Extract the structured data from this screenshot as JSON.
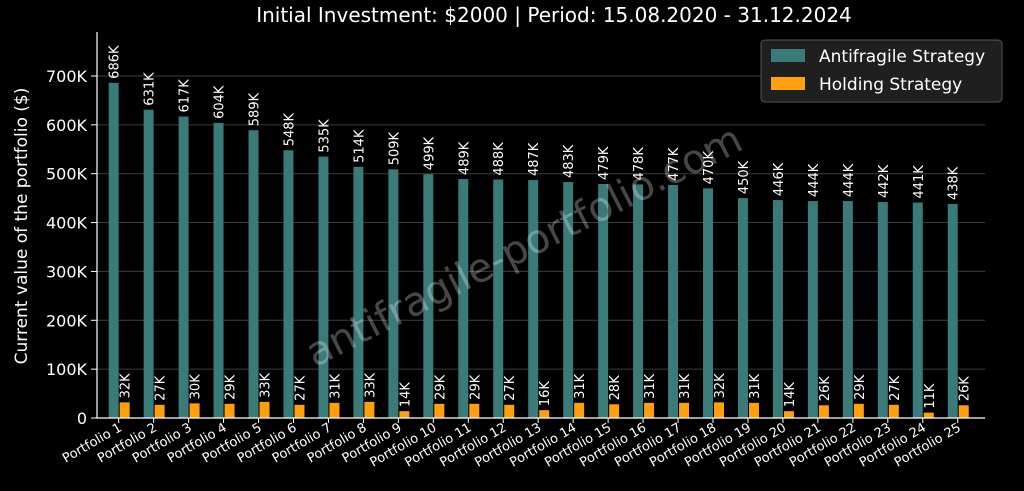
{
  "chart_data": {
    "type": "bar",
    "title": "Initial Investment: $2000 | Period: 15.08.2020 - 31.12.2024",
    "xlabel": "",
    "ylabel": "Current value of the portfolio ($)",
    "ylim": [
      0,
      790000
    ],
    "yticks": [
      0,
      100000,
      200000,
      300000,
      400000,
      500000,
      600000,
      700000
    ],
    "ytick_labels": [
      "0",
      "100K",
      "200K",
      "300K",
      "400K",
      "500K",
      "600K",
      "700K"
    ],
    "grid": "horizontal",
    "legend_position": "top-right",
    "watermark": "antifragile-portfolio.com",
    "categories": [
      "Portfolio 1",
      "Portfolio 2",
      "Portfolio 3",
      "Portfolio 4",
      "Portfolio 5",
      "Portfolio 6",
      "Portfolio 7",
      "Portfolio 8",
      "Portfolio 9",
      "Portfolio 10",
      "Portfolio 11",
      "Portfolio 12",
      "Portfolio 13",
      "Portfolio 14",
      "Portfolio 15",
      "Portfolio 16",
      "Portfolio 17",
      "Portfolio 18",
      "Portfolio 19",
      "Portfolio 20",
      "Portfolio 21",
      "Portfolio 22",
      "Portfolio 23",
      "Portfolio 24",
      "Portfolio 25"
    ],
    "series": [
      {
        "name": "Antifragile Strategy",
        "color": "#3a7a78",
        "values": [
          686000,
          631000,
          617000,
          604000,
          589000,
          548000,
          535000,
          514000,
          509000,
          499000,
          489000,
          488000,
          487000,
          483000,
          479000,
          478000,
          477000,
          470000,
          450000,
          446000,
          444000,
          444000,
          442000,
          441000,
          438000
        ],
        "labels": [
          "686K",
          "631K",
          "617K",
          "604K",
          "589K",
          "548K",
          "535K",
          "514K",
          "509K",
          "499K",
          "489K",
          "488K",
          "487K",
          "483K",
          "479K",
          "478K",
          "477K",
          "470K",
          "450K",
          "446K",
          "444K",
          "444K",
          "442K",
          "441K",
          "438K"
        ]
      },
      {
        "name": "Holding Strategy",
        "color": "#ff9e0f",
        "values": [
          32000,
          27000,
          30000,
          29000,
          33000,
          27000,
          31000,
          33000,
          14000,
          29000,
          29000,
          27000,
          16000,
          31000,
          28000,
          31000,
          31000,
          32000,
          31000,
          14000,
          26000,
          29000,
          27000,
          11000,
          26000
        ],
        "labels": [
          "32K",
          "27K",
          "30K",
          "29K",
          "33K",
          "27K",
          "31K",
          "33K",
          "14K",
          "29K",
          "29K",
          "27K",
          "16K",
          "31K",
          "28K",
          "31K",
          "31K",
          "32K",
          "31K",
          "14K",
          "26K",
          "29K",
          "27K",
          "11K",
          "26K"
        ]
      }
    ]
  }
}
